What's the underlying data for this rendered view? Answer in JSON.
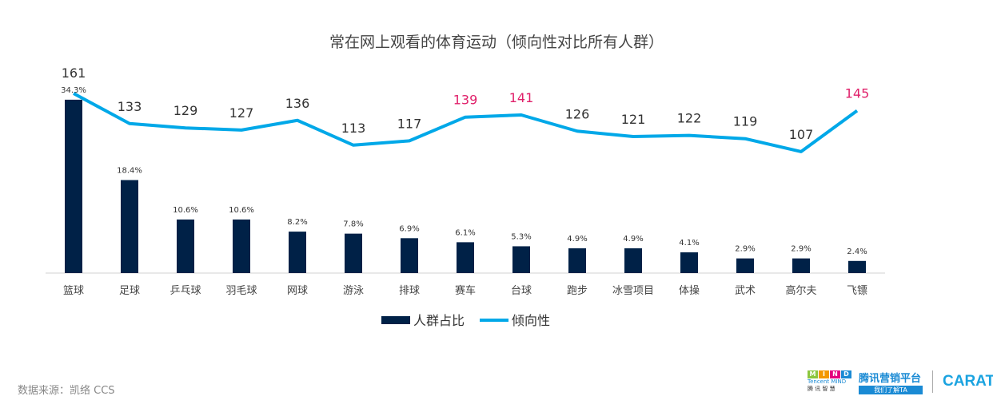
{
  "chart_data": {
    "type": "bar+line",
    "title": "常在网上观看的体育运动（倾向性对比所有人群）",
    "categories": [
      "篮球",
      "足球",
      "乒乓球",
      "羽毛球",
      "网球",
      "游泳",
      "排球",
      "赛车",
      "台球",
      "跑步",
      "冰雪项目",
      "体操",
      "武术",
      "高尔夫",
      "飞镖"
    ],
    "series": [
      {
        "name": "人群占比",
        "type": "bar",
        "color": "#002147",
        "values": [
          34.3,
          18.4,
          10.6,
          10.6,
          8.2,
          7.8,
          6.9,
          6.1,
          5.3,
          4.9,
          4.9,
          4.1,
          2.9,
          2.9,
          2.4
        ],
        "labels": [
          "34.3%",
          "18.4%",
          "10.6%",
          "10.6%",
          "8.2%",
          "7.8%",
          "6.9%",
          "6.1%",
          "5.3%",
          "4.9%",
          "4.9%",
          "4.1%",
          "2.9%",
          "2.9%",
          "2.4%"
        ]
      },
      {
        "name": "倾向性",
        "type": "line",
        "color": "#00a8e8",
        "values": [
          161,
          133,
          129,
          127,
          136,
          113,
          117,
          139,
          141,
          126,
          121,
          122,
          119,
          107,
          145
        ],
        "labels": [
          "161",
          "133",
          "129",
          "127",
          "136",
          "113",
          "117",
          "139",
          "141",
          "126",
          "121",
          "122",
          "119",
          "107",
          "145"
        ],
        "highlight_color": "#e0206a",
        "highlighted": [
          "赛车",
          "台球",
          "飞镖"
        ]
      }
    ],
    "legend": "bottom-center",
    "grid": false
  },
  "source": "数据来源：凯络 CCS",
  "logos": {
    "mind": "MIND",
    "mind_sub": "Tencent MIND",
    "mind_cn": "腾讯智慧",
    "tencent": "腾讯营销平台",
    "tencent_sub": "我们了解TA",
    "carat": "CARAT"
  }
}
